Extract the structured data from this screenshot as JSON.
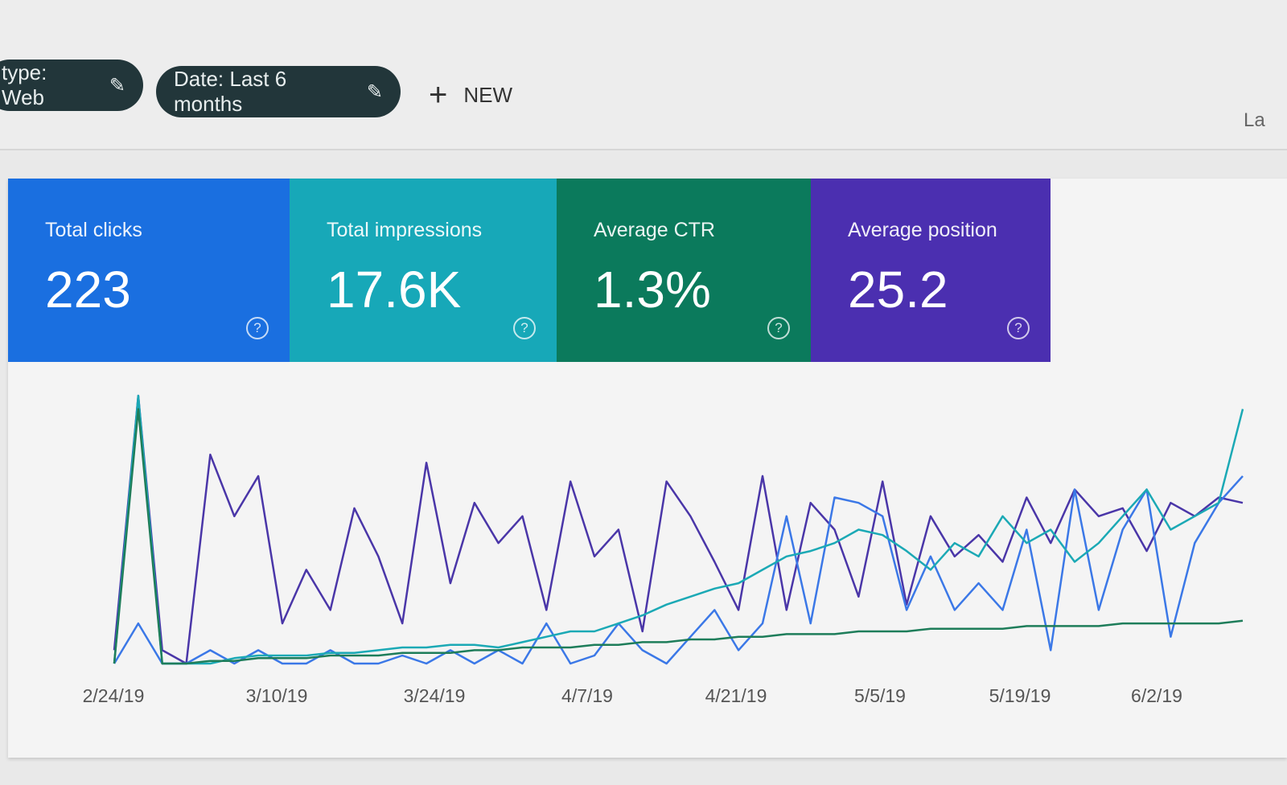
{
  "filters": {
    "type_chip": "type: Web",
    "date_chip": "Date: Last 6 months",
    "new_label": "NEW",
    "cut_text": "La"
  },
  "metrics": [
    {
      "label": "Total clicks",
      "value": "223",
      "color": "#1a6fe0"
    },
    {
      "label": "Total impressions",
      "value": "17.6K",
      "color": "#17a8b8"
    },
    {
      "label": "Average CTR",
      "value": "1.3%",
      "color": "#0b7a5c"
    },
    {
      "label": "Average position",
      "value": "25.2",
      "color": "#4b2fb0"
    }
  ],
  "chart_data": {
    "type": "line",
    "x_tick_labels": [
      "2/24/19",
      "3/10/19",
      "3/24/19",
      "4/7/19",
      "4/21/19",
      "5/5/19",
      "5/19/19",
      "6/2/19"
    ],
    "grid": false,
    "series": [
      {
        "color": "#4a36a8",
        "values": [
          5,
          100,
          5,
          0,
          78,
          55,
          70,
          15,
          35,
          20,
          58,
          40,
          15,
          75,
          30,
          60,
          45,
          55,
          20,
          68,
          40,
          50,
          12,
          68,
          55,
          38,
          20,
          70,
          20,
          60,
          50,
          25,
          68,
          22,
          55,
          40,
          48,
          38,
          62,
          45,
          65,
          55,
          58,
          42,
          60,
          55,
          62,
          60
        ]
      },
      {
        "color": "#3b78e7",
        "values": [
          0,
          15,
          0,
          0,
          5,
          0,
          5,
          0,
          0,
          5,
          0,
          0,
          3,
          0,
          5,
          0,
          5,
          0,
          15,
          0,
          3,
          15,
          5,
          0,
          10,
          20,
          5,
          15,
          55,
          15,
          62,
          60,
          55,
          20,
          40,
          20,
          30,
          20,
          50,
          5,
          65,
          20,
          50,
          65,
          10,
          45,
          60,
          70
        ]
      },
      {
        "color": "#1ba9b5",
        "values": [
          0,
          100,
          0,
          0,
          0,
          2,
          3,
          3,
          3,
          4,
          4,
          5,
          6,
          6,
          7,
          7,
          6,
          8,
          10,
          12,
          12,
          15,
          18,
          22,
          25,
          28,
          30,
          35,
          40,
          42,
          45,
          50,
          48,
          42,
          35,
          45,
          40,
          55,
          45,
          50,
          38,
          45,
          55,
          65,
          50,
          55,
          60,
          95
        ]
      },
      {
        "color": "#1e7d5a",
        "values": [
          0,
          95,
          0,
          0,
          1,
          1,
          2,
          2,
          2,
          3,
          3,
          3,
          4,
          4,
          4,
          5,
          5,
          6,
          6,
          6,
          7,
          7,
          8,
          8,
          9,
          9,
          10,
          10,
          11,
          11,
          11,
          12,
          12,
          12,
          13,
          13,
          13,
          13,
          14,
          14,
          14,
          14,
          15,
          15,
          15,
          15,
          15,
          16
        ]
      }
    ]
  }
}
